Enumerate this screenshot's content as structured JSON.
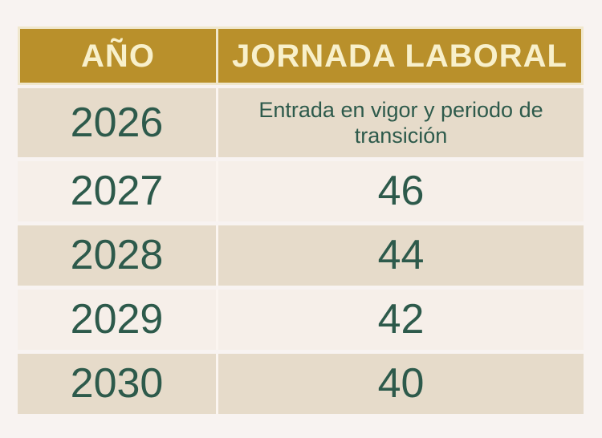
{
  "chart_data": {
    "type": "table",
    "columns": [
      "AÑO",
      "JORNADA LABORAL"
    ],
    "rows": [
      [
        "2026",
        "Entrada en vigor y periodo de transición"
      ],
      [
        "2027",
        "46"
      ],
      [
        "2028",
        "44"
      ],
      [
        "2029",
        "42"
      ],
      [
        "2030",
        "40"
      ]
    ],
    "layout": {
      "header_position": "top",
      "grid": "cream gaps between cells and rows",
      "row_striping": [
        "beige",
        "light-cream",
        "beige",
        "light-cream",
        "beige"
      ]
    }
  },
  "colors": {
    "header_background": "#b9902b",
    "header_text": "#f8f0cb",
    "header_border": "#f0e7cd",
    "row_beige": "#e6dbca",
    "row_light": "#f6efe9",
    "body_text_green": "#2d5a4b",
    "page_background": "#f8f3f1",
    "divider": "#fbf5f0"
  }
}
